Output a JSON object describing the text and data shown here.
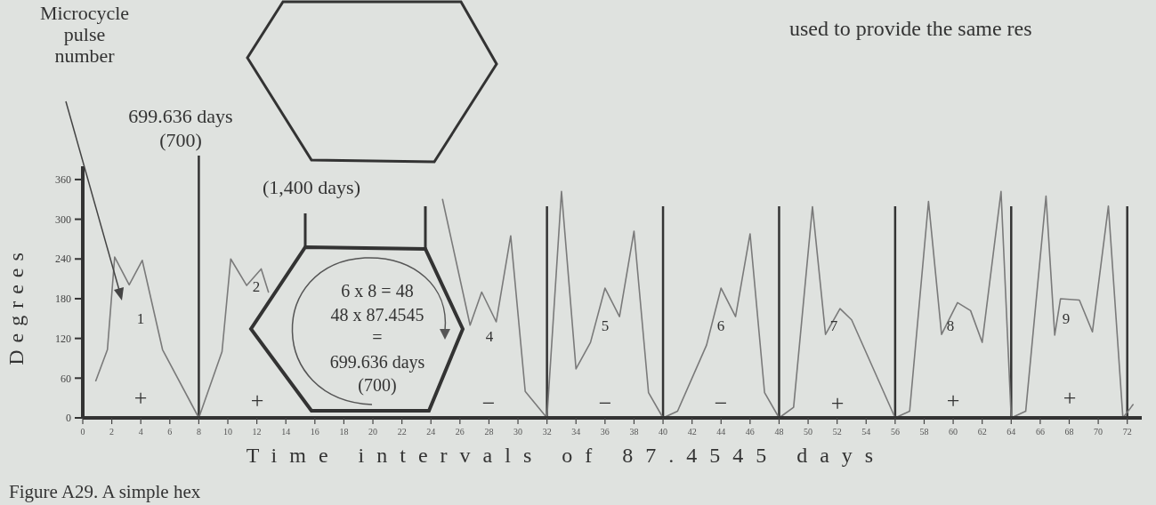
{
  "chart_data": {
    "type": "line",
    "xlabel": "Time intervals of 87.4545 days",
    "ylabel": "Degrees",
    "xlim": [
      0,
      73
    ],
    "ylim": [
      0,
      380
    ],
    "xticks": [
      0,
      2,
      4,
      6,
      8,
      10,
      12,
      14,
      16,
      18,
      20,
      22,
      24,
      26,
      28,
      30,
      32,
      34,
      36,
      38,
      40,
      42,
      44,
      46,
      48,
      50,
      52,
      54,
      56,
      58,
      60,
      62,
      64,
      66,
      68,
      70,
      72
    ],
    "yticks": [
      0,
      60,
      120,
      180,
      240,
      300,
      360
    ],
    "grid": false,
    "marker": "none",
    "line_style": "solid",
    "series": [
      {
        "color": "#7a7a7a",
        "x": [
          0.9,
          1.7,
          2.1,
          2.2,
          3.2,
          4.1,
          5.5,
          8,
          9.6,
          10.2,
          11.3,
          12.3,
          12.8,
          13.5,
          24.8,
          26.7,
          27.5,
          28.5,
          29.5,
          30.5,
          32,
          33,
          34,
          35,
          36,
          37,
          38,
          39,
          40,
          41,
          43,
          44,
          45,
          46,
          47,
          48,
          49,
          50.3,
          51.2,
          52.2,
          53,
          56,
          57,
          58.3,
          59.2,
          60.3,
          61.2,
          62,
          63.3,
          64,
          65,
          66.4,
          67,
          67.4,
          68.7,
          69.6,
          70.7,
          71.7,
          72.4
        ],
        "values": [
          56,
          103,
          215,
          243,
          201,
          238,
          103,
          0,
          100,
          240,
          200,
          225,
          190,
          null,
          330,
          140,
          190,
          145,
          275,
          40,
          0,
          342,
          74,
          114,
          196,
          153,
          282,
          38,
          0,
          10,
          110,
          196,
          153,
          278,
          38,
          0,
          16,
          319,
          126,
          165,
          148,
          0,
          10,
          327,
          126,
          174,
          162,
          114,
          342,
          0,
          10,
          335,
          125,
          180,
          178,
          130,
          320,
          0,
          20
        ]
      }
    ],
    "ref_lines": [
      {
        "axis": "x",
        "value": 8,
        "color": "#333333"
      },
      {
        "axis": "x",
        "value": 32,
        "color": "#333333"
      },
      {
        "axis": "x",
        "value": 40,
        "color": "#333333"
      },
      {
        "axis": "x",
        "value": 48,
        "color": "#333333"
      },
      {
        "axis": "x",
        "value": 56,
        "color": "#333333"
      },
      {
        "axis": "x",
        "value": 64,
        "color": "#333333"
      },
      {
        "axis": "x",
        "value": 72,
        "color": "#333333"
      }
    ],
    "annotations": [
      "1",
      "2",
      "4",
      "5",
      "6",
      "7",
      "8",
      "9",
      "+",
      "+",
      "−",
      "−",
      "−",
      "+",
      "+",
      "+",
      "Microcycle pulse number",
      "699.636 days",
      "(700)",
      "(1,400 days)",
      "6 x 8 = 48",
      "48 x 87.4545",
      "=",
      "699.636 days",
      "(700)",
      "used to provide the same res",
      "Figure A29. A simple hex"
    ]
  }
}
